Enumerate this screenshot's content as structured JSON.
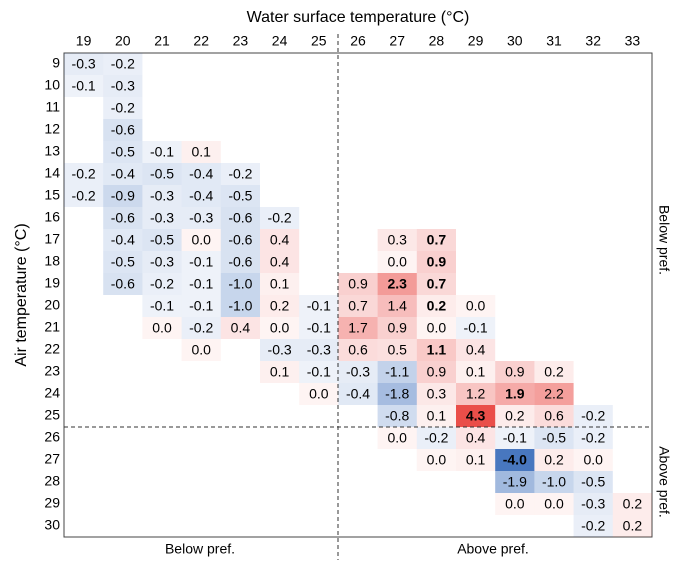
{
  "header": {
    "x_title": "Water surface temperature (°C)",
    "y_title": "Air temperature (°C)"
  },
  "side_labels": {
    "right_top": "Below pref.",
    "right_bottom": "Above pref.",
    "bottom_left": "Below pref.",
    "bottom_right": "Above pref."
  },
  "table": {
    "columns": [
      "19",
      "20",
      "21",
      "22",
      "23",
      "24",
      "25",
      "26",
      "27",
      "28",
      "29",
      "30",
      "31",
      "32",
      "33"
    ],
    "rows": [
      {
        "label": "9",
        "cells": [
          "-0.3",
          "-0.2",
          null,
          null,
          null,
          null,
          null,
          null,
          null,
          null,
          null,
          null,
          null,
          null,
          null
        ]
      },
      {
        "label": "10",
        "cells": [
          "-0.1",
          "-0.3",
          null,
          null,
          null,
          null,
          null,
          null,
          null,
          null,
          null,
          null,
          null,
          null,
          null
        ]
      },
      {
        "label": "11",
        "cells": [
          null,
          "-0.2",
          null,
          null,
          null,
          null,
          null,
          null,
          null,
          null,
          null,
          null,
          null,
          null,
          null
        ]
      },
      {
        "label": "12",
        "cells": [
          null,
          "-0.6",
          null,
          null,
          null,
          null,
          null,
          null,
          null,
          null,
          null,
          null,
          null,
          null,
          null
        ]
      },
      {
        "label": "13",
        "cells": [
          null,
          "-0.5",
          "-0.1",
          "0.1",
          null,
          null,
          null,
          null,
          null,
          null,
          null,
          null,
          null,
          null,
          null
        ]
      },
      {
        "label": "14",
        "cells": [
          "-0.2",
          "-0.4",
          "-0.5",
          "-0.4",
          "-0.2",
          null,
          null,
          null,
          null,
          null,
          null,
          null,
          null,
          null,
          null
        ]
      },
      {
        "label": "15",
        "cells": [
          "-0.2",
          "-0.9",
          "-0.3",
          "-0.4",
          "-0.5",
          null,
          null,
          null,
          null,
          null,
          null,
          null,
          null,
          null,
          null
        ]
      },
      {
        "label": "16",
        "cells": [
          null,
          "-0.6",
          "-0.3",
          "-0.3",
          "-0.6",
          "-0.2",
          null,
          null,
          null,
          null,
          null,
          null,
          null,
          null,
          null
        ]
      },
      {
        "label": "17",
        "cells": [
          null,
          "-0.4",
          "-0.5",
          "0.0",
          "-0.6",
          "0.4",
          null,
          null,
          "0.3",
          {
            "text": "0.7",
            "bold": true
          },
          null,
          null,
          null,
          null,
          null
        ]
      },
      {
        "label": "18",
        "cells": [
          null,
          "-0.5",
          "-0.3",
          "-0.1",
          "-0.6",
          "0.4",
          null,
          null,
          "0.0",
          {
            "text": "0.9",
            "bold": true
          },
          null,
          null,
          null,
          null,
          null
        ]
      },
      {
        "label": "19",
        "cells": [
          null,
          "-0.6",
          "-0.2",
          "-0.1",
          "-1.0",
          "0.1",
          null,
          "0.9",
          {
            "text": "2.3",
            "bold": true
          },
          {
            "text": "0.7",
            "bold": true
          },
          null,
          null,
          null,
          null,
          null
        ]
      },
      {
        "label": "20",
        "cells": [
          null,
          null,
          "-0.1",
          "-0.1",
          "-1.0",
          "0.2",
          "-0.1",
          "0.7",
          "1.4",
          {
            "text": "0.2",
            "bold": true
          },
          "0.0",
          null,
          null,
          null,
          null
        ]
      },
      {
        "label": "21",
        "cells": [
          null,
          null,
          "0.0",
          "-0.2",
          "0.4",
          "0.0",
          "-0.1",
          "1.7",
          "0.9",
          "0.0",
          "-0.1",
          null,
          null,
          null,
          null
        ]
      },
      {
        "label": "22",
        "cells": [
          null,
          null,
          null,
          "0.0",
          null,
          "-0.3",
          "-0.3",
          "0.6",
          "0.5",
          {
            "text": "1.1",
            "bold": true
          },
          "0.4",
          null,
          null,
          null,
          null
        ]
      },
      {
        "label": "23",
        "cells": [
          null,
          null,
          null,
          null,
          null,
          "0.1",
          "-0.1",
          "-0.3",
          "-1.1",
          "0.9",
          "0.1",
          "0.9",
          "0.2",
          null,
          null
        ]
      },
      {
        "label": "24",
        "cells": [
          null,
          null,
          null,
          null,
          null,
          null,
          "0.0",
          "-0.4",
          "-1.8",
          "0.3",
          "1.2",
          {
            "text": "1.9",
            "bold": true
          },
          "2.2",
          null,
          null
        ]
      },
      {
        "label": "25",
        "cells": [
          null,
          null,
          null,
          null,
          null,
          null,
          null,
          null,
          "-0.8",
          "0.1",
          {
            "text": "4.3",
            "bold": true
          },
          "0.2",
          "0.6",
          "-0.2",
          null
        ]
      },
      {
        "label": "26",
        "cells": [
          null,
          null,
          null,
          null,
          null,
          null,
          null,
          null,
          "0.0",
          "-0.2",
          "0.4",
          "-0.1",
          "-0.5",
          "-0.2",
          null
        ]
      },
      {
        "label": "27",
        "cells": [
          null,
          null,
          null,
          null,
          null,
          null,
          null,
          null,
          null,
          "0.0",
          "0.1",
          {
            "text": "-4.0",
            "bold": true
          },
          "0.2",
          "0.0",
          null
        ]
      },
      {
        "label": "28",
        "cells": [
          null,
          null,
          null,
          null,
          null,
          null,
          null,
          null,
          null,
          null,
          null,
          "-1.9",
          "-1.0",
          "-0.5",
          null
        ]
      },
      {
        "label": "29",
        "cells": [
          null,
          null,
          null,
          null,
          null,
          null,
          null,
          null,
          null,
          null,
          null,
          "0.0",
          "0.0",
          "-0.3",
          "0.2"
        ]
      },
      {
        "label": "30",
        "cells": [
          null,
          null,
          null,
          null,
          null,
          null,
          null,
          null,
          null,
          null,
          null,
          null,
          null,
          "-0.2",
          "0.2"
        ]
      }
    ]
  }
}
